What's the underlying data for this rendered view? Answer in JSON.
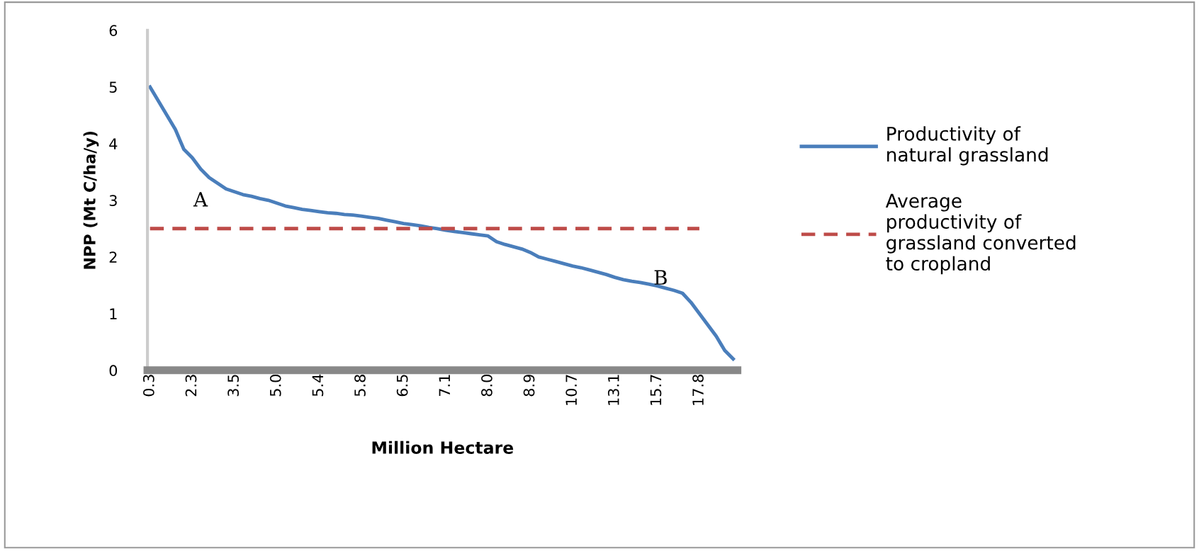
{
  "chart_data": {
    "type": "line",
    "xlabel": "Million Hectare",
    "ylabel": "NPP (Mt C/ha/y)",
    "categories": [
      "0.3",
      null,
      null,
      null,
      null,
      "2.3",
      null,
      null,
      null,
      null,
      "3.5",
      null,
      null,
      null,
      null,
      "5.0",
      null,
      null,
      null,
      null,
      "5.4",
      null,
      null,
      null,
      null,
      "5.8",
      null,
      null,
      null,
      null,
      "6.5",
      null,
      null,
      null,
      null,
      "7.1",
      null,
      null,
      null,
      null,
      "8.0",
      null,
      null,
      null,
      null,
      "8.9",
      null,
      null,
      null,
      null,
      "10.7",
      null,
      null,
      null,
      null,
      "13.1",
      null,
      null,
      null,
      null,
      "15.7",
      null,
      null,
      null,
      null,
      "17.8",
      null,
      null,
      null,
      null
    ],
    "series": [
      {
        "name": "Productivity of natural grassland",
        "color": "#4a7ebb",
        "values": [
          5.0,
          4.75,
          4.5,
          4.25,
          3.9,
          3.75,
          3.55,
          3.4,
          3.3,
          3.2,
          3.15,
          3.1,
          3.07,
          3.03,
          3.0,
          2.95,
          2.9,
          2.87,
          2.84,
          2.82,
          2.8,
          2.78,
          2.77,
          2.75,
          2.74,
          2.72,
          2.7,
          2.68,
          2.65,
          2.62,
          2.59,
          2.57,
          2.55,
          2.52,
          2.5,
          2.47,
          2.45,
          2.43,
          2.41,
          2.39,
          2.37,
          2.27,
          2.22,
          2.18,
          2.14,
          2.08,
          2.0,
          1.96,
          1.92,
          1.88,
          1.84,
          1.81,
          1.77,
          1.73,
          1.69,
          1.64,
          1.6,
          1.57,
          1.55,
          1.52,
          1.49,
          1.45,
          1.41,
          1.36,
          1.2,
          1.0,
          0.8,
          0.6,
          0.35,
          0.2
        ]
      },
      {
        "name": "Average productivity of grassland converted to cropland",
        "color": "#be4b48",
        "line_style": "dashed",
        "values": [
          2.5,
          2.5,
          2.5,
          2.5,
          2.5,
          2.5,
          2.5,
          2.5,
          2.5,
          2.5,
          2.5,
          2.5,
          2.5,
          2.5,
          2.5,
          2.5,
          2.5,
          2.5,
          2.5,
          2.5,
          2.5,
          2.5,
          2.5,
          2.5,
          2.5,
          2.5,
          2.5,
          2.5,
          2.5,
          2.5,
          2.5,
          2.5,
          2.5,
          2.5,
          2.5,
          2.5,
          2.5,
          2.5,
          2.5,
          2.5,
          2.5,
          2.5,
          2.5,
          2.5,
          2.5,
          2.5,
          2.5,
          2.5,
          2.5,
          2.5,
          2.5,
          2.5,
          2.5,
          2.5,
          2.5,
          2.5,
          2.5,
          2.5,
          2.5,
          2.5,
          2.5,
          2.5,
          2.5,
          2.5,
          2.5,
          2.5,
          null,
          null,
          null,
          null
        ]
      }
    ],
    "annotations": [
      "A",
      "B"
    ],
    "ylim": [
      0,
      6
    ],
    "yticks": [
      0,
      1,
      2,
      3,
      4,
      5,
      6
    ],
    "grid": false,
    "legend": "right",
    "marker": "none",
    "line_style": "solid"
  }
}
